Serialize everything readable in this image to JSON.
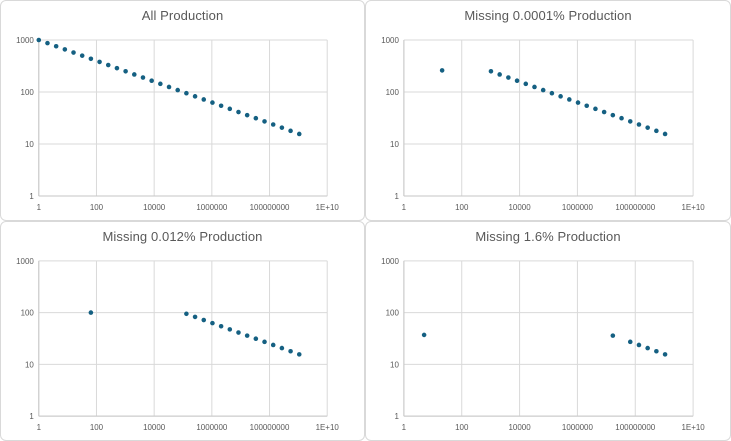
{
  "colors": {
    "marker": "#156082",
    "gridline": "#D9D9D9",
    "axis_line": "#C6C6C6",
    "panel_border": "#D9D9D9",
    "panel_background": "#FFFFFF",
    "title_text": "#595959",
    "tick_text": "#595959"
  },
  "axes": {
    "x_scale": "log",
    "y_scale": "log",
    "x_ticks": [
      {
        "label": "1",
        "value": 1
      },
      {
        "label": "100",
        "value": 100
      },
      {
        "label": "10000",
        "value": 10000
      },
      {
        "label": "1000000",
        "value": 1000000
      },
      {
        "label": "100000000",
        "value": 100000000
      },
      {
        "label": "1E+10",
        "value": 10000000000
      }
    ],
    "y_ticks": [
      {
        "label": "1",
        "value": 1
      },
      {
        "label": "10",
        "value": 10
      },
      {
        "label": "100",
        "value": 100
      },
      {
        "label": "1000",
        "value": 1000
      }
    ],
    "xlim": [
      1,
      10000000000
    ],
    "ylim": [
      1,
      1000
    ],
    "grid": true
  },
  "chart_data": [
    {
      "type": "scatter",
      "title": "All Production",
      "xlim": [
        1,
        10000000000
      ],
      "ylim": [
        1,
        1000
      ],
      "points": [
        [
          1,
          1000
        ],
        [
          2,
          870.6
        ],
        [
          4,
          757.9
        ],
        [
          8,
          659.8
        ],
        [
          16,
          574.3
        ],
        [
          32,
          500
        ],
        [
          64,
          435.3
        ],
        [
          128,
          378.9
        ],
        [
          256,
          329.9
        ],
        [
          512,
          287.2
        ],
        [
          1024,
          250
        ],
        [
          2048,
          217.6
        ],
        [
          4096,
          189.5
        ],
        [
          8192,
          164.9
        ],
        [
          16384,
          143.6
        ],
        [
          32768,
          125
        ],
        [
          65536,
          108.8
        ],
        [
          131072,
          94.7
        ],
        [
          262144,
          82.5
        ],
        [
          524288,
          71.8
        ],
        [
          1048576,
          62.5
        ],
        [
          2097152,
          54.4
        ],
        [
          4194304,
          47.4
        ],
        [
          8388608,
          41.2
        ],
        [
          16777216,
          35.9
        ],
        [
          33554432,
          31.3
        ],
        [
          67108864,
          27.2
        ],
        [
          134217728,
          23.7
        ],
        [
          268435456,
          20.6
        ],
        [
          536870912,
          17.9
        ],
        [
          1073741824,
          15.6
        ]
      ]
    },
    {
      "type": "scatter",
      "title": "Missing 0.0001% Production",
      "xlim": [
        1,
        10000000000
      ],
      "ylim": [
        1,
        1000
      ],
      "points": [
        [
          21,
          260
        ],
        [
          1024,
          250
        ],
        [
          2048,
          217.6
        ],
        [
          4096,
          189.5
        ],
        [
          8192,
          164.9
        ],
        [
          16384,
          143.6
        ],
        [
          32768,
          125
        ],
        [
          65536,
          108.8
        ],
        [
          131072,
          94.7
        ],
        [
          262144,
          82.5
        ],
        [
          524288,
          71.8
        ],
        [
          1048576,
          62.5
        ],
        [
          2097152,
          54.4
        ],
        [
          4194304,
          47.4
        ],
        [
          8388608,
          41.2
        ],
        [
          16777216,
          35.9
        ],
        [
          33554432,
          31.3
        ],
        [
          67108864,
          27.2
        ],
        [
          134217728,
          23.7
        ],
        [
          268435456,
          20.6
        ],
        [
          536870912,
          17.9
        ],
        [
          1073741824,
          15.6
        ]
      ]
    },
    {
      "type": "scatter",
      "title": "Missing  0.012% Production",
      "xlim": [
        1,
        10000000000
      ],
      "ylim": [
        1,
        1000
      ],
      "points": [
        [
          64,
          100
        ],
        [
          131072,
          94.7
        ],
        [
          262144,
          82.5
        ],
        [
          524288,
          71.8
        ],
        [
          1048576,
          62.5
        ],
        [
          2097152,
          54.4
        ],
        [
          4194304,
          47.4
        ],
        [
          8388608,
          41.2
        ],
        [
          16777216,
          35.9
        ],
        [
          33554432,
          31.3
        ],
        [
          67108864,
          27.2
        ],
        [
          134217728,
          23.7
        ],
        [
          268435456,
          20.6
        ],
        [
          536870912,
          17.9
        ],
        [
          1073741824,
          15.6
        ]
      ]
    },
    {
      "type": "scatter",
      "title": "Missing 1.6% Production",
      "xlim": [
        1,
        10000000000
      ],
      "ylim": [
        1,
        1000
      ],
      "points": [
        [
          5,
          37
        ],
        [
          16777216,
          35.9
        ],
        [
          67108864,
          27.2
        ],
        [
          134217728,
          23.7
        ],
        [
          268435456,
          20.6
        ],
        [
          536870912,
          17.9
        ],
        [
          1073741824,
          15.6
        ]
      ]
    }
  ]
}
